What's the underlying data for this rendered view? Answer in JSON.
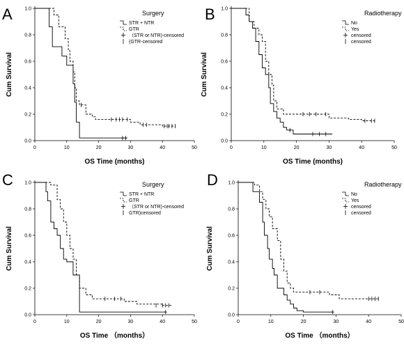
{
  "chart_data": [
    {
      "panel": "A",
      "type": "line",
      "xlabel": "OS Time (months)",
      "ylabel": "Cum Survival",
      "xlim": [
        0,
        50
      ],
      "ylim": [
        0,
        1.0
      ],
      "xticks": [
        "0",
        "10",
        "20",
        "30",
        "40",
        "50"
      ],
      "yticks": [
        "0.0",
        "0.2",
        "0.4",
        "0.6",
        "0.8",
        "1.0"
      ],
      "legend": {
        "title": "Surgery",
        "placement": "top-right",
        "entries": [
          "STR + NTR",
          "GTR",
          "（STR or NTR)-censored",
          "(GTR-censored"
        ]
      },
      "series": [
        {
          "name": "STR + NTR",
          "style": "solid",
          "steps": [
            [
              0,
              1.0
            ],
            [
              4.5,
              0.86
            ],
            [
              5.5,
              0.71
            ],
            [
              8.5,
              0.64
            ],
            [
              10,
              0.57
            ],
            [
              12,
              0.43
            ],
            [
              12.5,
              0.29
            ],
            [
              13,
              0.14
            ],
            [
              14,
              0.02
            ],
            [
              29,
              0.02
            ]
          ],
          "censored": [
            [
              27.5,
              0.02
            ],
            [
              28.5,
              0.02
            ]
          ]
        },
        {
          "name": "GTR",
          "style": "dashed",
          "steps": [
            [
              0,
              1.0
            ],
            [
              6,
              0.95
            ],
            [
              7.5,
              0.86
            ],
            [
              9.5,
              0.77
            ],
            [
              10.5,
              0.68
            ],
            [
              11,
              0.6
            ],
            [
              12,
              0.52
            ],
            [
              12.5,
              0.4
            ],
            [
              13,
              0.3
            ],
            [
              14,
              0.27
            ],
            [
              16,
              0.2
            ],
            [
              18,
              0.18
            ],
            [
              19,
              0.16
            ],
            [
              30,
              0.14
            ],
            [
              33,
              0.12
            ],
            [
              40,
              0.11
            ],
            [
              44,
              0.11
            ]
          ],
          "censored": [
            [
              14.5,
              0.27
            ],
            [
              24,
              0.16
            ],
            [
              25.5,
              0.16
            ],
            [
              26.5,
              0.16
            ],
            [
              27.5,
              0.16
            ],
            [
              29,
              0.16
            ],
            [
              34,
              0.12
            ],
            [
              35,
              0.12
            ],
            [
              40.5,
              0.11
            ],
            [
              41.5,
              0.11
            ],
            [
              42,
              0.11
            ],
            [
              43,
              0.11
            ],
            [
              44,
              0.11
            ]
          ]
        }
      ]
    },
    {
      "panel": "B",
      "type": "line",
      "xlabel": "OS Time (months)",
      "ylabel": "Cum Survival",
      "xlim": [
        0,
        50
      ],
      "ylim": [
        0,
        1.0
      ],
      "xticks": [
        "0",
        "10",
        "20",
        "30",
        "40",
        "50"
      ],
      "yticks": [
        "0.0",
        "0.2",
        "0.4",
        "0.6",
        "0.8",
        "1.0"
      ],
      "legend": {
        "title": "Radiotherapy",
        "placement": "top-right",
        "entries": [
          "No",
          "Yes",
          "censored",
          "censored"
        ]
      },
      "series": [
        {
          "name": "No",
          "style": "solid",
          "steps": [
            [
              0,
              1.0
            ],
            [
              4.5,
              0.95
            ],
            [
              5.5,
              0.9
            ],
            [
              6.5,
              0.85
            ],
            [
              7.5,
              0.75
            ],
            [
              8.5,
              0.65
            ],
            [
              9.5,
              0.55
            ],
            [
              10.5,
              0.5
            ],
            [
              11.5,
              0.4
            ],
            [
              12,
              0.28
            ],
            [
              13,
              0.22
            ],
            [
              14,
              0.17
            ],
            [
              15,
              0.14
            ],
            [
              16,
              0.1
            ],
            [
              17,
              0.08
            ],
            [
              19,
              0.05
            ],
            [
              29,
              0.05
            ],
            [
              31,
              0.05
            ]
          ],
          "censored": [
            [
              18,
              0.08
            ],
            [
              25,
              0.05
            ],
            [
              27,
              0.05
            ],
            [
              29,
              0.05
            ]
          ]
        },
        {
          "name": "Yes",
          "style": "dashed",
          "steps": [
            [
              0,
              1.0
            ],
            [
              5.5,
              0.9
            ],
            [
              7,
              0.85
            ],
            [
              8.5,
              0.8
            ],
            [
              9.5,
              0.75
            ],
            [
              10.5,
              0.6
            ],
            [
              11.5,
              0.5
            ],
            [
              12.5,
              0.42
            ],
            [
              13,
              0.3
            ],
            [
              14,
              0.24
            ],
            [
              16,
              0.2
            ],
            [
              30,
              0.17
            ],
            [
              36,
              0.16
            ],
            [
              40,
              0.15
            ],
            [
              44,
              0.15
            ]
          ],
          "censored": [
            [
              22,
              0.2
            ],
            [
              24,
              0.2
            ],
            [
              26,
              0.2
            ],
            [
              29,
              0.2
            ],
            [
              41,
              0.15
            ],
            [
              43,
              0.15
            ],
            [
              44,
              0.15
            ]
          ]
        }
      ]
    },
    {
      "panel": "C",
      "type": "line",
      "xlabel": "OS Time （months）",
      "ylabel": "Cum Survival",
      "xlim": [
        0,
        50
      ],
      "ylim": [
        0,
        1.0
      ],
      "xticks": [
        "0",
        "10",
        "20",
        "30",
        "40",
        "50"
      ],
      "yticks": [
        "0.0",
        "0.2",
        "0.4",
        "0.6",
        "0.8",
        "1.0"
      ],
      "legend": {
        "title": "Surgery",
        "placement": "top-right",
        "entries": [
          "STR + NTR",
          "GTR",
          "（STR or NTR)-censored",
          "GTR)censored"
        ]
      },
      "series": [
        {
          "name": "STR + NTR",
          "style": "solid",
          "steps": [
            [
              0,
              1.0
            ],
            [
              3.5,
              0.93
            ],
            [
              4,
              0.86
            ],
            [
              5,
              0.7
            ],
            [
              6,
              0.65
            ],
            [
              7,
              0.6
            ],
            [
              8,
              0.5
            ],
            [
              9,
              0.42
            ],
            [
              10,
              0.4
            ],
            [
              12,
              0.3
            ],
            [
              14,
              0.02
            ],
            [
              41,
              0.02
            ]
          ],
          "censored": [
            [
              41,
              0.02
            ]
          ]
        },
        {
          "name": "GTR",
          "style": "dashed",
          "steps": [
            [
              0,
              1.0
            ],
            [
              5,
              0.98
            ],
            [
              7,
              0.87
            ],
            [
              8,
              0.8
            ],
            [
              9,
              0.7
            ],
            [
              10,
              0.6
            ],
            [
              11,
              0.5
            ],
            [
              12,
              0.42
            ],
            [
              13,
              0.3
            ],
            [
              14,
              0.2
            ],
            [
              16,
              0.15
            ],
            [
              18,
              0.12
            ],
            [
              28,
              0.1
            ],
            [
              32,
              0.08
            ],
            [
              40,
              0.07
            ],
            [
              43,
              0.07
            ]
          ],
          "censored": [
            [
              22,
              0.12
            ],
            [
              25,
              0.12
            ],
            [
              27,
              0.12
            ],
            [
              38,
              0.07
            ],
            [
              40,
              0.07
            ],
            [
              41,
              0.07
            ],
            [
              42,
              0.07
            ]
          ]
        }
      ]
    },
    {
      "panel": "D",
      "type": "line",
      "xlabel": "OS Time （months）",
      "ylabel": "Cum Survival",
      "xlim": [
        0,
        50
      ],
      "ylim": [
        0,
        1.0
      ],
      "xticks": [
        "0",
        "10",
        "20",
        "30",
        "40",
        "50"
      ],
      "yticks": [
        "0.0",
        "0.2",
        "0.4",
        "0.6",
        "0.8",
        "1.0"
      ],
      "legend": {
        "title": "Radiotherapy",
        "placement": "top-right",
        "entries": [
          "No",
          "Yes",
          "censored",
          "censored"
        ]
      },
      "series": [
        {
          "name": "No",
          "style": "solid",
          "steps": [
            [
              0,
              1.0
            ],
            [
              4.5,
              0.93
            ],
            [
              6.5,
              0.85
            ],
            [
              7.5,
              0.7
            ],
            [
              8,
              0.6
            ],
            [
              9,
              0.5
            ],
            [
              9.5,
              0.42
            ],
            [
              10.5,
              0.35
            ],
            [
              11,
              0.3
            ],
            [
              12,
              0.2
            ],
            [
              14,
              0.15
            ],
            [
              15,
              0.11
            ],
            [
              16,
              0.08
            ],
            [
              17,
              0.05
            ],
            [
              18,
              0.03
            ],
            [
              20,
              0.02
            ],
            [
              29,
              0.02
            ]
          ],
          "censored": [
            [
              29,
              0.02
            ]
          ]
        },
        {
          "name": "Yes",
          "style": "dashed",
          "steps": [
            [
              0,
              1.0
            ],
            [
              5,
              0.98
            ],
            [
              6.5,
              0.93
            ],
            [
              7.5,
              0.87
            ],
            [
              8.5,
              0.8
            ],
            [
              9.5,
              0.74
            ],
            [
              10.5,
              0.65
            ],
            [
              12,
              0.56
            ],
            [
              13,
              0.42
            ],
            [
              14,
              0.33
            ],
            [
              15,
              0.24
            ],
            [
              16,
              0.2
            ],
            [
              17,
              0.17
            ],
            [
              28,
              0.15
            ],
            [
              31,
              0.12
            ],
            [
              43,
              0.12
            ]
          ],
          "censored": [
            [
              22,
              0.17
            ],
            [
              25,
              0.17
            ],
            [
              40,
              0.12
            ],
            [
              41,
              0.12
            ],
            [
              42,
              0.12
            ],
            [
              43,
              0.12
            ]
          ]
        }
      ]
    }
  ]
}
